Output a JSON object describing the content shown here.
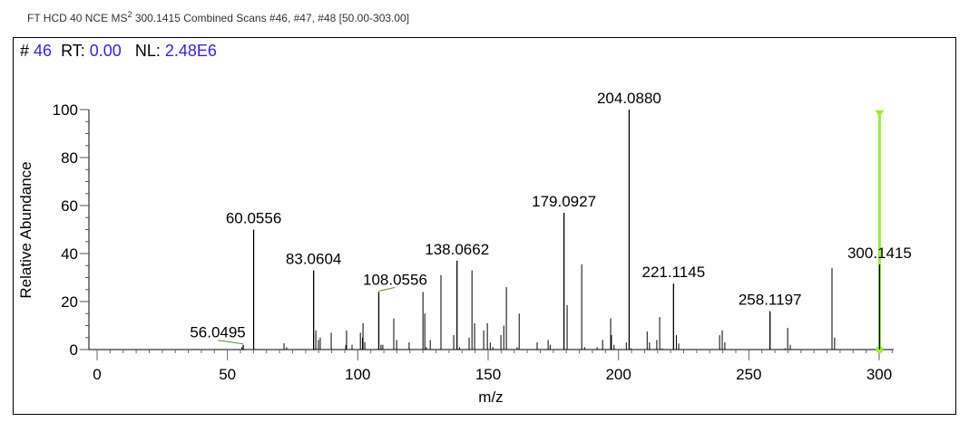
{
  "header": {
    "title_pre": "FT HCD 40 NCE MS",
    "title_sup": "2",
    "title_post": " 300.1415 Combined Scans #46, #47, #48 [50.00-303.00]"
  },
  "info": {
    "scan_label": "#",
    "scan": "46",
    "rt_label": "RT:",
    "rt": "0.00",
    "nl_label": "NL:",
    "nl": "2.48E6"
  },
  "colors": {
    "peak": "#000000",
    "precursor": "#99ee33",
    "leader": "#5a8a3a",
    "value": "#3a1ee8"
  },
  "chart_data": {
    "type": "bar",
    "title": "FT HCD 40 NCE MS2 300.1415 Combined Scans #46, #47, #48 [50.00-303.00]",
    "xlabel": "m/z",
    "ylabel": "Relative Abundance",
    "xlim": [
      0,
      300
    ],
    "ylim": [
      0,
      100
    ],
    "xticks": [
      0,
      50,
      100,
      150,
      200,
      250,
      300
    ],
    "yticks": [
      0,
      20,
      40,
      60,
      80,
      100
    ],
    "precursor_mz": 300.1415,
    "labeled_peaks": [
      {
        "mz": 56.0495,
        "label": "56.0495",
        "intensity": 2
      },
      {
        "mz": 60.0556,
        "label": "60.0556",
        "intensity": 50
      },
      {
        "mz": 83.0604,
        "label": "83.0604",
        "intensity": 33
      },
      {
        "mz": 108.0556,
        "label": "108.0556",
        "intensity": 24
      },
      {
        "mz": 138.0662,
        "label": "138.0662",
        "intensity": 37
      },
      {
        "mz": 179.0927,
        "label": "179.0927",
        "intensity": 57
      },
      {
        "mz": 204.088,
        "label": "204.0880",
        "intensity": 100
      },
      {
        "mz": 221.1145,
        "label": "221.1145",
        "intensity": 27.5
      },
      {
        "mz": 258.1197,
        "label": "258.1197",
        "intensity": 16
      },
      {
        "mz": 300.1415,
        "label": "300.1415",
        "intensity": 35.5
      }
    ],
    "peaks": [
      [
        55.5,
        1
      ],
      [
        71.7,
        2.6
      ],
      [
        72.7,
        1
      ],
      [
        83.9,
        8
      ],
      [
        84.9,
        4
      ],
      [
        85.6,
        5
      ],
      [
        89.8,
        7
      ],
      [
        95.4,
        2
      ],
      [
        95.7,
        8
      ],
      [
        97.8,
        2
      ],
      [
        101.0,
        7
      ],
      [
        101.8,
        5
      ],
      [
        102.0,
        11
      ],
      [
        102.7,
        3
      ],
      [
        108.9,
        2
      ],
      [
        109.6,
        2
      ],
      [
        113.8,
        13
      ],
      [
        114.9,
        4
      ],
      [
        119.7,
        3
      ],
      [
        125.0,
        24
      ],
      [
        125.7,
        15
      ],
      [
        126.3,
        1
      ],
      [
        127.8,
        4
      ],
      [
        131.9,
        31
      ],
      [
        136.8,
        6
      ],
      [
        139.0,
        1
      ],
      [
        142.7,
        5
      ],
      [
        143.8,
        33
      ],
      [
        144.8,
        11
      ],
      [
        148.3,
        8
      ],
      [
        149.7,
        11
      ],
      [
        150.8,
        3
      ],
      [
        151.8,
        1
      ],
      [
        154.9,
        6
      ],
      [
        156.0,
        10
      ],
      [
        157.0,
        26
      ],
      [
        161.1,
        1
      ],
      [
        161.9,
        15
      ],
      [
        168.8,
        3
      ],
      [
        173.0,
        4
      ],
      [
        173.8,
        2
      ],
      [
        180.3,
        18.5
      ],
      [
        185.9,
        35.5
      ],
      [
        187.0,
        1
      ],
      [
        191.8,
        1
      ],
      [
        193.9,
        4
      ],
      [
        197.0,
        13
      ],
      [
        197.3,
        6
      ],
      [
        198.3,
        2
      ],
      [
        203.0,
        3
      ],
      [
        204.8,
        0.5
      ],
      [
        211.0,
        7.5
      ],
      [
        211.9,
        3
      ],
      [
        214.7,
        4
      ],
      [
        215.8,
        13.5
      ],
      [
        216.8,
        0.5
      ],
      [
        222.2,
        6
      ],
      [
        223.1,
        2.5
      ],
      [
        238.8,
        6
      ],
      [
        239.8,
        8
      ],
      [
        240.8,
        3
      ],
      [
        263.9,
        0.5
      ],
      [
        264.9,
        9
      ],
      [
        265.9,
        2
      ],
      [
        281.9,
        34
      ],
      [
        282.9,
        5
      ]
    ]
  }
}
